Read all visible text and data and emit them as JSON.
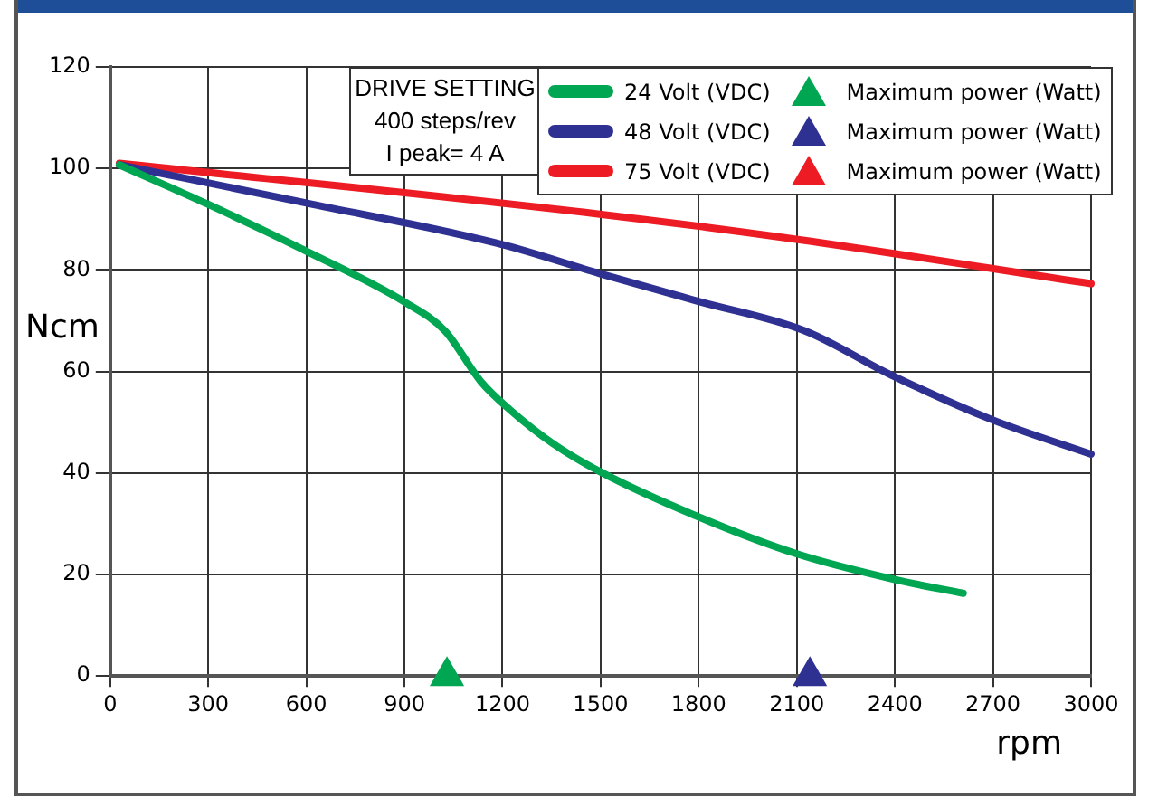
{
  "chart_data": {
    "type": "line",
    "xlabel": "rpm",
    "ylabel": "Ncm",
    "annotations": [
      "DRIVE SETTING",
      "400 steps/rev",
      "I peak= 4 A"
    ],
    "xlim": [
      0,
      3000
    ],
    "xticks": [
      0,
      300,
      600,
      900,
      1200,
      1500,
      1800,
      2100,
      2400,
      2700,
      3000
    ],
    "ylim": [
      0,
      120
    ],
    "yticks": [
      0,
      20,
      40,
      60,
      80,
      100,
      120
    ],
    "grid": true,
    "legend": "top right",
    "line_style": "solid",
    "series": [
      {
        "name": "24 Volt (VDC)",
        "color": "#00a651",
        "marker": "none",
        "x": [
          28,
          297,
          600,
          903,
          1024,
          1134,
          1222,
          1354,
          1497,
          1794,
          2103,
          2400,
          2609
        ],
        "values": [
          100.7,
          93,
          83.7,
          73.6,
          68,
          58,
          52.5,
          45.8,
          40.3,
          31.5,
          24,
          19,
          16.3
        ]
      },
      {
        "name": "Maximum power (Watt)",
        "color": "#00a651",
        "type": "scatter",
        "marker": "triangle",
        "x": [
          1030
        ],
        "values": [
          0
        ]
      },
      {
        "name": "48 Volt (VDC)",
        "color": "#2e3192",
        "marker": "none",
        "x": [
          28,
          600,
          1200,
          1497,
          1794,
          2125,
          2389,
          2697,
          3000
        ],
        "values": [
          100.7,
          93.2,
          85,
          79.3,
          73.9,
          68,
          59.3,
          50.5,
          43.7
        ]
      },
      {
        "name": "Maximum power (Watt)",
        "color": "#2e3192",
        "type": "scatter",
        "marker": "triangle",
        "x": [
          2140
        ],
        "values": [
          0
        ]
      },
      {
        "name": "75 Volt (VDC)",
        "color": "#ed1c24",
        "marker": "none",
        "x": [
          28,
          1497,
          2103,
          3000
        ],
        "values": [
          101,
          91,
          86,
          77.3
        ]
      },
      {
        "name": "Maximum power (Watt)",
        "color": "#ed1c24",
        "type": "scatter",
        "marker": "triangle"
      }
    ]
  }
}
